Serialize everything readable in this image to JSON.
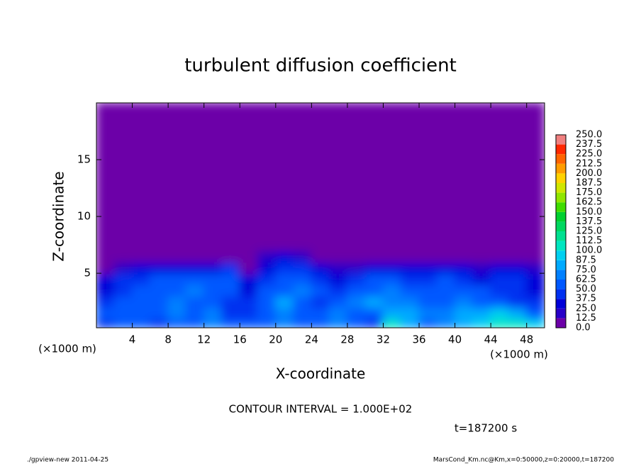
{
  "chart_data": {
    "type": "heatmap",
    "title": "turbulent diffusion coefficient",
    "x_label": "X-coordinate",
    "y_label": "Z-coordinate",
    "x_unit_labels": [
      "(×1000 m)",
      "(×1000 m)"
    ],
    "contour_note": "CONTOUR INTERVAL = 1.000E+02",
    "time_note": "t=187200 s",
    "footer_left": "./gpview-new  2011-04-25",
    "footer_right": "MarsCond_Km.nc@Km,x=0:50000,z=0:20000,t=187200",
    "xlim": [
      0,
      50
    ],
    "ylim": [
      0.2,
      20
    ],
    "xticks": [
      4,
      8,
      12,
      16,
      20,
      24,
      28,
      32,
      36,
      40,
      44,
      48
    ],
    "yticks": [
      5,
      10,
      15
    ],
    "x_edges": [
      0,
      2,
      4,
      6,
      8,
      10,
      12,
      14,
      16,
      18,
      20,
      22,
      24,
      26,
      28,
      30,
      32,
      34,
      36,
      38,
      40,
      42,
      44,
      46,
      48,
      50
    ],
    "y_edges": [
      0.2,
      1,
      2,
      3,
      4,
      5,
      6,
      7,
      8,
      20
    ],
    "values": [
      [
        40,
        55,
        50,
        45,
        60,
        50,
        70,
        60,
        55,
        50,
        65,
        60,
        55,
        70,
        50,
        45,
        100,
        80,
        60,
        70,
        75,
        90,
        110,
        105,
        95
      ],
      [
        50,
        60,
        55,
        50,
        70,
        55,
        65,
        45,
        40,
        55,
        70,
        60,
        50,
        65,
        55,
        60,
        85,
        75,
        65,
        70,
        80,
        85,
        90,
        80,
        60
      ],
      [
        45,
        50,
        60,
        55,
        65,
        60,
        55,
        40,
        45,
        60,
        75,
        55,
        45,
        60,
        70,
        75,
        70,
        65,
        60,
        55,
        65,
        60,
        50,
        45,
        40
      ],
      [
        35,
        45,
        50,
        60,
        55,
        65,
        60,
        50,
        35,
        50,
        60,
        65,
        50,
        40,
        55,
        60,
        65,
        55,
        50,
        60,
        55,
        50,
        45,
        40,
        35
      ],
      [
        30,
        40,
        45,
        50,
        55,
        50,
        55,
        60,
        30,
        40,
        50,
        55,
        45,
        30,
        40,
        50,
        55,
        45,
        40,
        50,
        45,
        35,
        40,
        45,
        30
      ],
      [
        10,
        20,
        25,
        35,
        30,
        25,
        30,
        45,
        5,
        30,
        40,
        45,
        35,
        15,
        20,
        30,
        35,
        30,
        25,
        30,
        25,
        20,
        30,
        35,
        15
      ],
      [
        0,
        0,
        0,
        0,
        0,
        0,
        0,
        10,
        0,
        15,
        25,
        20,
        0,
        0,
        0,
        0,
        0,
        0,
        0,
        0,
        0,
        0,
        0,
        0,
        0
      ],
      [
        0,
        0,
        0,
        0,
        0,
        0,
        0,
        0,
        0,
        0,
        10,
        0,
        0,
        0,
        0,
        0,
        0,
        0,
        0,
        0,
        0,
        0,
        0,
        0,
        0
      ],
      [
        0,
        0,
        0,
        0,
        0,
        0,
        0,
        0,
        0,
        0,
        0,
        0,
        0,
        0,
        0,
        0,
        0,
        0,
        0,
        0,
        0,
        0,
        0,
        0,
        0
      ]
    ],
    "levels": [
      {
        "value": 0,
        "label": "0.0"
      },
      12.5,
      25,
      37.5,
      50,
      62.5,
      75,
      87.5,
      100,
      112.5,
      125,
      137.5,
      150,
      162.5,
      175,
      187.5,
      200,
      212.5,
      225,
      237.5,
      250
    ],
    "level_labels": [
      "0.0",
      "12.5",
      "25.0",
      "37.5",
      "50.0",
      "62.5",
      "75.0",
      "87.5",
      "100.0",
      "112.5",
      "125.0",
      "137.5",
      "150.0",
      "162.5",
      "175.0",
      "187.5",
      "200.0",
      "212.5",
      "225.0",
      "237.5",
      "250.0"
    ],
    "colors": [
      "#6c00a8",
      "#2800c8",
      "#0000d8",
      "#0030f0",
      "#0058ff",
      "#0080ff",
      "#00aaff",
      "#00d0f0",
      "#00e6c0",
      "#00e090",
      "#00d860",
      "#00d030",
      "#40dc00",
      "#90e600",
      "#d0e600",
      "#ffd200",
      "#ff9c00",
      "#ff6400",
      "#ff2800",
      "#f08080"
    ]
  }
}
